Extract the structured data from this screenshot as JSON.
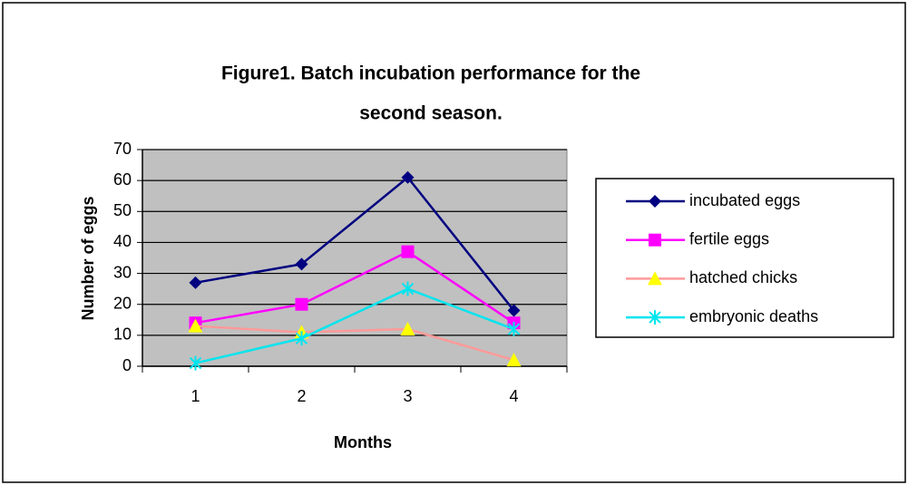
{
  "chart_data": {
    "type": "line",
    "title": [
      "Figure1. Batch incubation performance for the",
      "second season."
    ],
    "x_label": "Months",
    "y_label": "Number of eggs",
    "categories": [
      "1",
      "2",
      "3",
      "4"
    ],
    "series": [
      {
        "name": "incubated eggs",
        "color": "#000080",
        "marker": "diamond",
        "values": [
          27,
          33,
          61,
          18
        ]
      },
      {
        "name": "fertile eggs",
        "color": "#ff00ff",
        "marker": "square",
        "values": [
          14,
          20,
          37,
          14
        ]
      },
      {
        "name": "hatched chicks",
        "color": "#ff9999",
        "marker_color": "#ffff00",
        "marker": "triangle",
        "values": [
          13,
          11,
          12,
          2
        ]
      },
      {
        "name": "embryonic deaths",
        "color": "#00e5ee",
        "marker": "x",
        "values": [
          1,
          9,
          25,
          12
        ]
      }
    ],
    "ylim": [
      0,
      70
    ],
    "yticks": [
      0,
      10,
      20,
      30,
      40,
      50,
      60,
      70
    ],
    "grid": true,
    "plot_background": "#c0c0c0",
    "legend": "right"
  }
}
